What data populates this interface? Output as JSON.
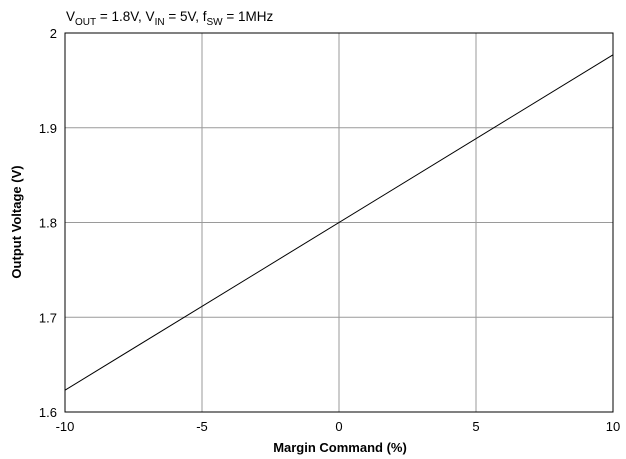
{
  "chart_data": {
    "type": "line",
    "conditions": {
      "v1": "V",
      "v1_sub": "OUT",
      "v1_val": " = 1.8V, ",
      "v2": "V",
      "v2_sub": "IN",
      "v2_val": " = 5V, ",
      "f": "f",
      "f_sub": "SW",
      "f_val": " = 1MHz"
    },
    "xlabel": "Margin Command (%)",
    "ylabel": "Output Voltage (V)",
    "xlim": [
      -10,
      10
    ],
    "ylim": [
      1.6,
      2.0
    ],
    "x_ticks": [
      -10,
      -5,
      0,
      5,
      10
    ],
    "y_ticks": [
      1.6,
      1.7,
      1.8,
      1.9,
      2.0
    ],
    "x_tick_labels": [
      "-10",
      "-5",
      "0",
      "5",
      "10"
    ],
    "y_tick_labels": [
      "1.6",
      "1.7",
      "1.8",
      "1.9",
      "2"
    ],
    "grid": true,
    "series": [
      {
        "x": [
          -10,
          10
        ],
        "y": [
          1.623,
          1.977
        ],
        "color": "#000000"
      }
    ]
  }
}
